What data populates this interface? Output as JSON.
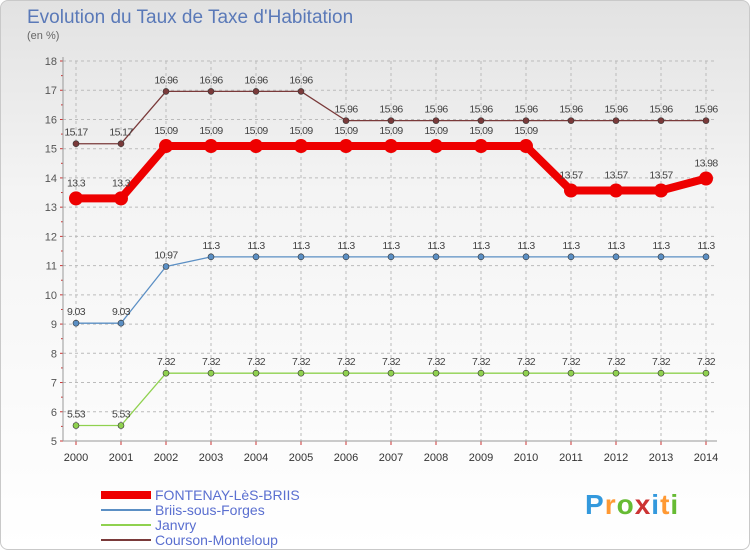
{
  "title": "Evolution du Taux de Taxe d'Habitation",
  "unit_label": "(en %)",
  "logo": {
    "letters": [
      "P",
      "r",
      "o",
      "x",
      "i",
      "t",
      "i"
    ],
    "colors": [
      "#3399dd",
      "#ff9933",
      "#66bb33",
      "#cc3333",
      "#3399dd",
      "#ff9933",
      "#66bb33"
    ]
  },
  "chart_data": {
    "type": "line",
    "title": "Evolution du Taux de Taxe d'Habitation",
    "ylabel": "(en %)",
    "x": [
      "2000",
      "2001",
      "2002",
      "2003",
      "2004",
      "2005",
      "2006",
      "2007",
      "2008",
      "2009",
      "2010",
      "2011",
      "2012",
      "2013",
      "2014"
    ],
    "ylim": [
      5,
      18
    ],
    "yticks": [
      "5",
      "6",
      "7",
      "8",
      "9",
      "10",
      "11",
      "12",
      "13",
      "14",
      "15",
      "16",
      "17",
      "18"
    ],
    "grid": true,
    "legend_position": "bottom-left",
    "series": [
      {
        "name": "FONTENAY-LèS-BRIIS",
        "color": "#ee0000",
        "bold": true,
        "values": [
          13.3,
          13.3,
          15.09,
          15.09,
          15.09,
          15.09,
          15.09,
          15.09,
          15.09,
          15.09,
          15.09,
          13.57,
          13.57,
          13.57,
          13.98
        ],
        "labels": [
          "13.3",
          "13.3",
          "15.09",
          "15.09",
          "15.09",
          "15.09",
          "15.09",
          "15.09",
          "15.09",
          "15.09",
          "15.09",
          "13.57",
          "13.57",
          "13.57",
          "13.98"
        ]
      },
      {
        "name": "Briis-sous-Forges",
        "color": "#5b8fc4",
        "bold": false,
        "values": [
          9.03,
          9.03,
          10.97,
          11.3,
          11.3,
          11.3,
          11.3,
          11.3,
          11.3,
          11.3,
          11.3,
          11.3,
          11.3,
          11.3,
          11.3
        ],
        "labels": [
          "9.03",
          "9.03",
          "10.97",
          "11.3",
          "11.3",
          "11.3",
          "11.3",
          "11.3",
          "11.3",
          "11.3",
          "11.3",
          "11.3",
          "11.3",
          "11.3",
          "11.3"
        ]
      },
      {
        "name": "Janvry",
        "color": "#8fd14f",
        "bold": false,
        "values": [
          5.53,
          5.53,
          7.32,
          7.32,
          7.32,
          7.32,
          7.32,
          7.32,
          7.32,
          7.32,
          7.32,
          7.32,
          7.32,
          7.32,
          7.32
        ],
        "labels": [
          "5.53",
          "5.53",
          "7.32",
          "7.32",
          "7.32",
          "7.32",
          "7.32",
          "7.32",
          "7.32",
          "7.32",
          "7.32",
          "7.32",
          "7.32",
          "7.32",
          "7.32"
        ]
      },
      {
        "name": "Courson-Monteloup",
        "color": "#7a3a3a",
        "bold": false,
        "values": [
          15.17,
          15.17,
          16.96,
          16.96,
          16.96,
          16.96,
          15.96,
          15.96,
          15.96,
          15.96,
          15.96,
          15.96,
          15.96,
          15.96,
          15.96
        ],
        "labels": [
          "15.17",
          "15.17",
          "16.96",
          "16.96",
          "16.96",
          "16.96",
          "15.96",
          "15.96",
          "15.96",
          "15.96",
          "15.96",
          "15.96",
          "15.96",
          "15.96",
          "15.96"
        ]
      }
    ]
  }
}
